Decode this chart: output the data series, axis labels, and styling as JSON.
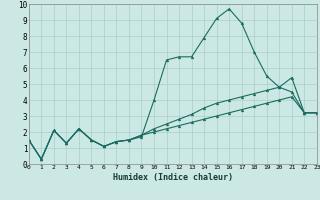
{
  "xlabel": "Humidex (Indice chaleur)",
  "ylabel": "",
  "xlim": [
    0,
    23
  ],
  "ylim": [
    0,
    10
  ],
  "xtick_labels": [
    "0",
    "1",
    "2",
    "3",
    "4",
    "5",
    "6",
    "7",
    "8",
    "9",
    "10",
    "11",
    "12",
    "13",
    "14",
    "15",
    "16",
    "17",
    "18",
    "19",
    "20",
    "21",
    "22",
    "23"
  ],
  "ytick_labels": [
    "0",
    "1",
    "2",
    "3",
    "4",
    "5",
    "6",
    "7",
    "8",
    "9",
    "10"
  ],
  "bg_color": "#cce8e4",
  "grid_color": "#aacfcb",
  "line_color": "#1a6b60",
  "series1_x": [
    0,
    1,
    2,
    3,
    4,
    5,
    6,
    7,
    8,
    9,
    10,
    11,
    12,
    13,
    14,
    15,
    16,
    17,
    18,
    19,
    20,
    21,
    22,
    23
  ],
  "series1_y": [
    1.5,
    0.3,
    2.1,
    1.3,
    2.2,
    1.5,
    1.1,
    1.4,
    1.5,
    1.7,
    4.0,
    6.5,
    6.7,
    6.7,
    7.9,
    9.1,
    9.7,
    8.8,
    7.0,
    5.5,
    4.8,
    4.5,
    3.2,
    3.2
  ],
  "series2_x": [
    0,
    1,
    2,
    3,
    4,
    5,
    6,
    7,
    8,
    9,
    10,
    11,
    12,
    13,
    14,
    15,
    16,
    17,
    18,
    19,
    20,
    21,
    22,
    23
  ],
  "series2_y": [
    1.5,
    0.3,
    2.1,
    1.3,
    2.2,
    1.5,
    1.1,
    1.4,
    1.5,
    1.8,
    2.2,
    2.5,
    2.8,
    3.1,
    3.5,
    3.8,
    4.0,
    4.2,
    4.4,
    4.6,
    4.8,
    5.4,
    3.2,
    3.2
  ],
  "series3_x": [
    0,
    1,
    2,
    3,
    4,
    5,
    6,
    7,
    8,
    9,
    10,
    11,
    12,
    13,
    14,
    15,
    16,
    17,
    18,
    19,
    20,
    21,
    22,
    23
  ],
  "series3_y": [
    1.5,
    0.3,
    2.1,
    1.3,
    2.2,
    1.5,
    1.1,
    1.4,
    1.5,
    1.8,
    2.0,
    2.2,
    2.4,
    2.6,
    2.8,
    3.0,
    3.2,
    3.4,
    3.6,
    3.8,
    4.0,
    4.2,
    3.2,
    3.2
  ]
}
